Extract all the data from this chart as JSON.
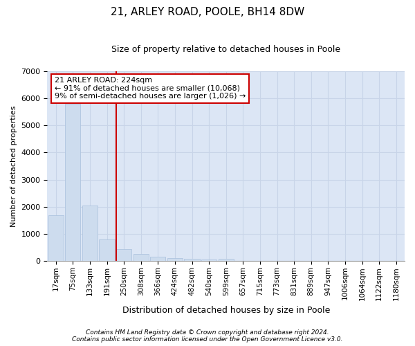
{
  "title": "21, ARLEY ROAD, POOLE, BH14 8DW",
  "subtitle": "Size of property relative to detached houses in Poole",
  "xlabel": "Distribution of detached houses by size in Poole",
  "ylabel": "Number of detached properties",
  "categories": [
    "17sqm",
    "75sqm",
    "133sqm",
    "191sqm",
    "250sqm",
    "308sqm",
    "366sqm",
    "424sqm",
    "482sqm",
    "540sqm",
    "599sqm",
    "657sqm",
    "715sqm",
    "773sqm",
    "831sqm",
    "889sqm",
    "947sqm",
    "1006sqm",
    "1064sqm",
    "1122sqm",
    "1180sqm"
  ],
  "values": [
    1700,
    5800,
    2050,
    800,
    450,
    250,
    150,
    100,
    75,
    50,
    75,
    0,
    0,
    0,
    0,
    0,
    0,
    0,
    0,
    0,
    0
  ],
  "bar_color": "#cddcee",
  "bar_edge_color": "#a8c0dc",
  "grid_color": "#c8d4e8",
  "background_color": "#dce6f5",
  "red_line_x": 3.55,
  "annotation_text": "21 ARLEY ROAD: 224sqm\n← 91% of detached houses are smaller (10,068)\n9% of semi-detached houses are larger (1,026) →",
  "annotation_box_color": "#ffffff",
  "annotation_border_color": "#cc0000",
  "footnote1": "Contains HM Land Registry data © Crown copyright and database right 2024.",
  "footnote2": "Contains public sector information licensed under the Open Government Licence v3.0.",
  "ylim": [
    0,
    7000
  ],
  "yticks": [
    0,
    1000,
    2000,
    3000,
    4000,
    5000,
    6000,
    7000
  ],
  "title_fontsize": 11,
  "subtitle_fontsize": 9,
  "ylabel_fontsize": 8,
  "xlabel_fontsize": 9
}
